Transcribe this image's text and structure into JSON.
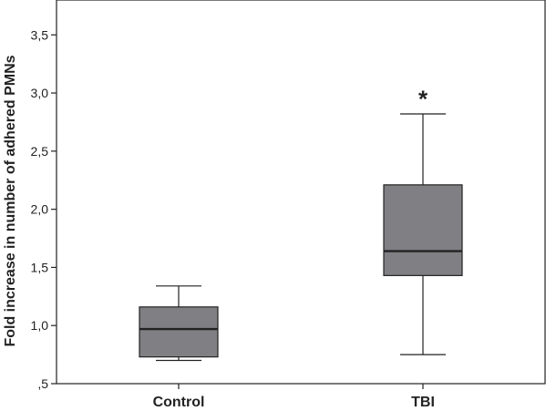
{
  "chart_data": {
    "type": "box",
    "title": "",
    "xlabel": "",
    "ylabel": "Fold increase in number of adhered PMNs",
    "ylim": [
      0.5,
      3.8
    ],
    "y_ticks": [
      {
        "value": 0.5,
        "label": ",5"
      },
      {
        "value": 1.0,
        "label": "1,0"
      },
      {
        "value": 1.5,
        "label": "1,5"
      },
      {
        "value": 2.0,
        "label": "2,0"
      },
      {
        "value": 2.5,
        "label": "2,5"
      },
      {
        "value": 3.0,
        "label": "3,0"
      },
      {
        "value": 3.5,
        "label": "3,5"
      }
    ],
    "categories": [
      "Control",
      "TBI"
    ],
    "boxes": [
      {
        "name": "Control",
        "min": 0.7,
        "q1": 0.73,
        "median": 0.97,
        "q3": 1.16,
        "max": 1.34
      },
      {
        "name": "TBI",
        "min": 0.75,
        "q1": 1.43,
        "median": 1.64,
        "q3": 2.21,
        "max": 2.82
      }
    ],
    "annotations": [
      {
        "category": "TBI",
        "text": "*",
        "y": 3.02
      }
    ],
    "colors": {
      "box_fill": "#808084",
      "stroke": "#222222"
    }
  }
}
